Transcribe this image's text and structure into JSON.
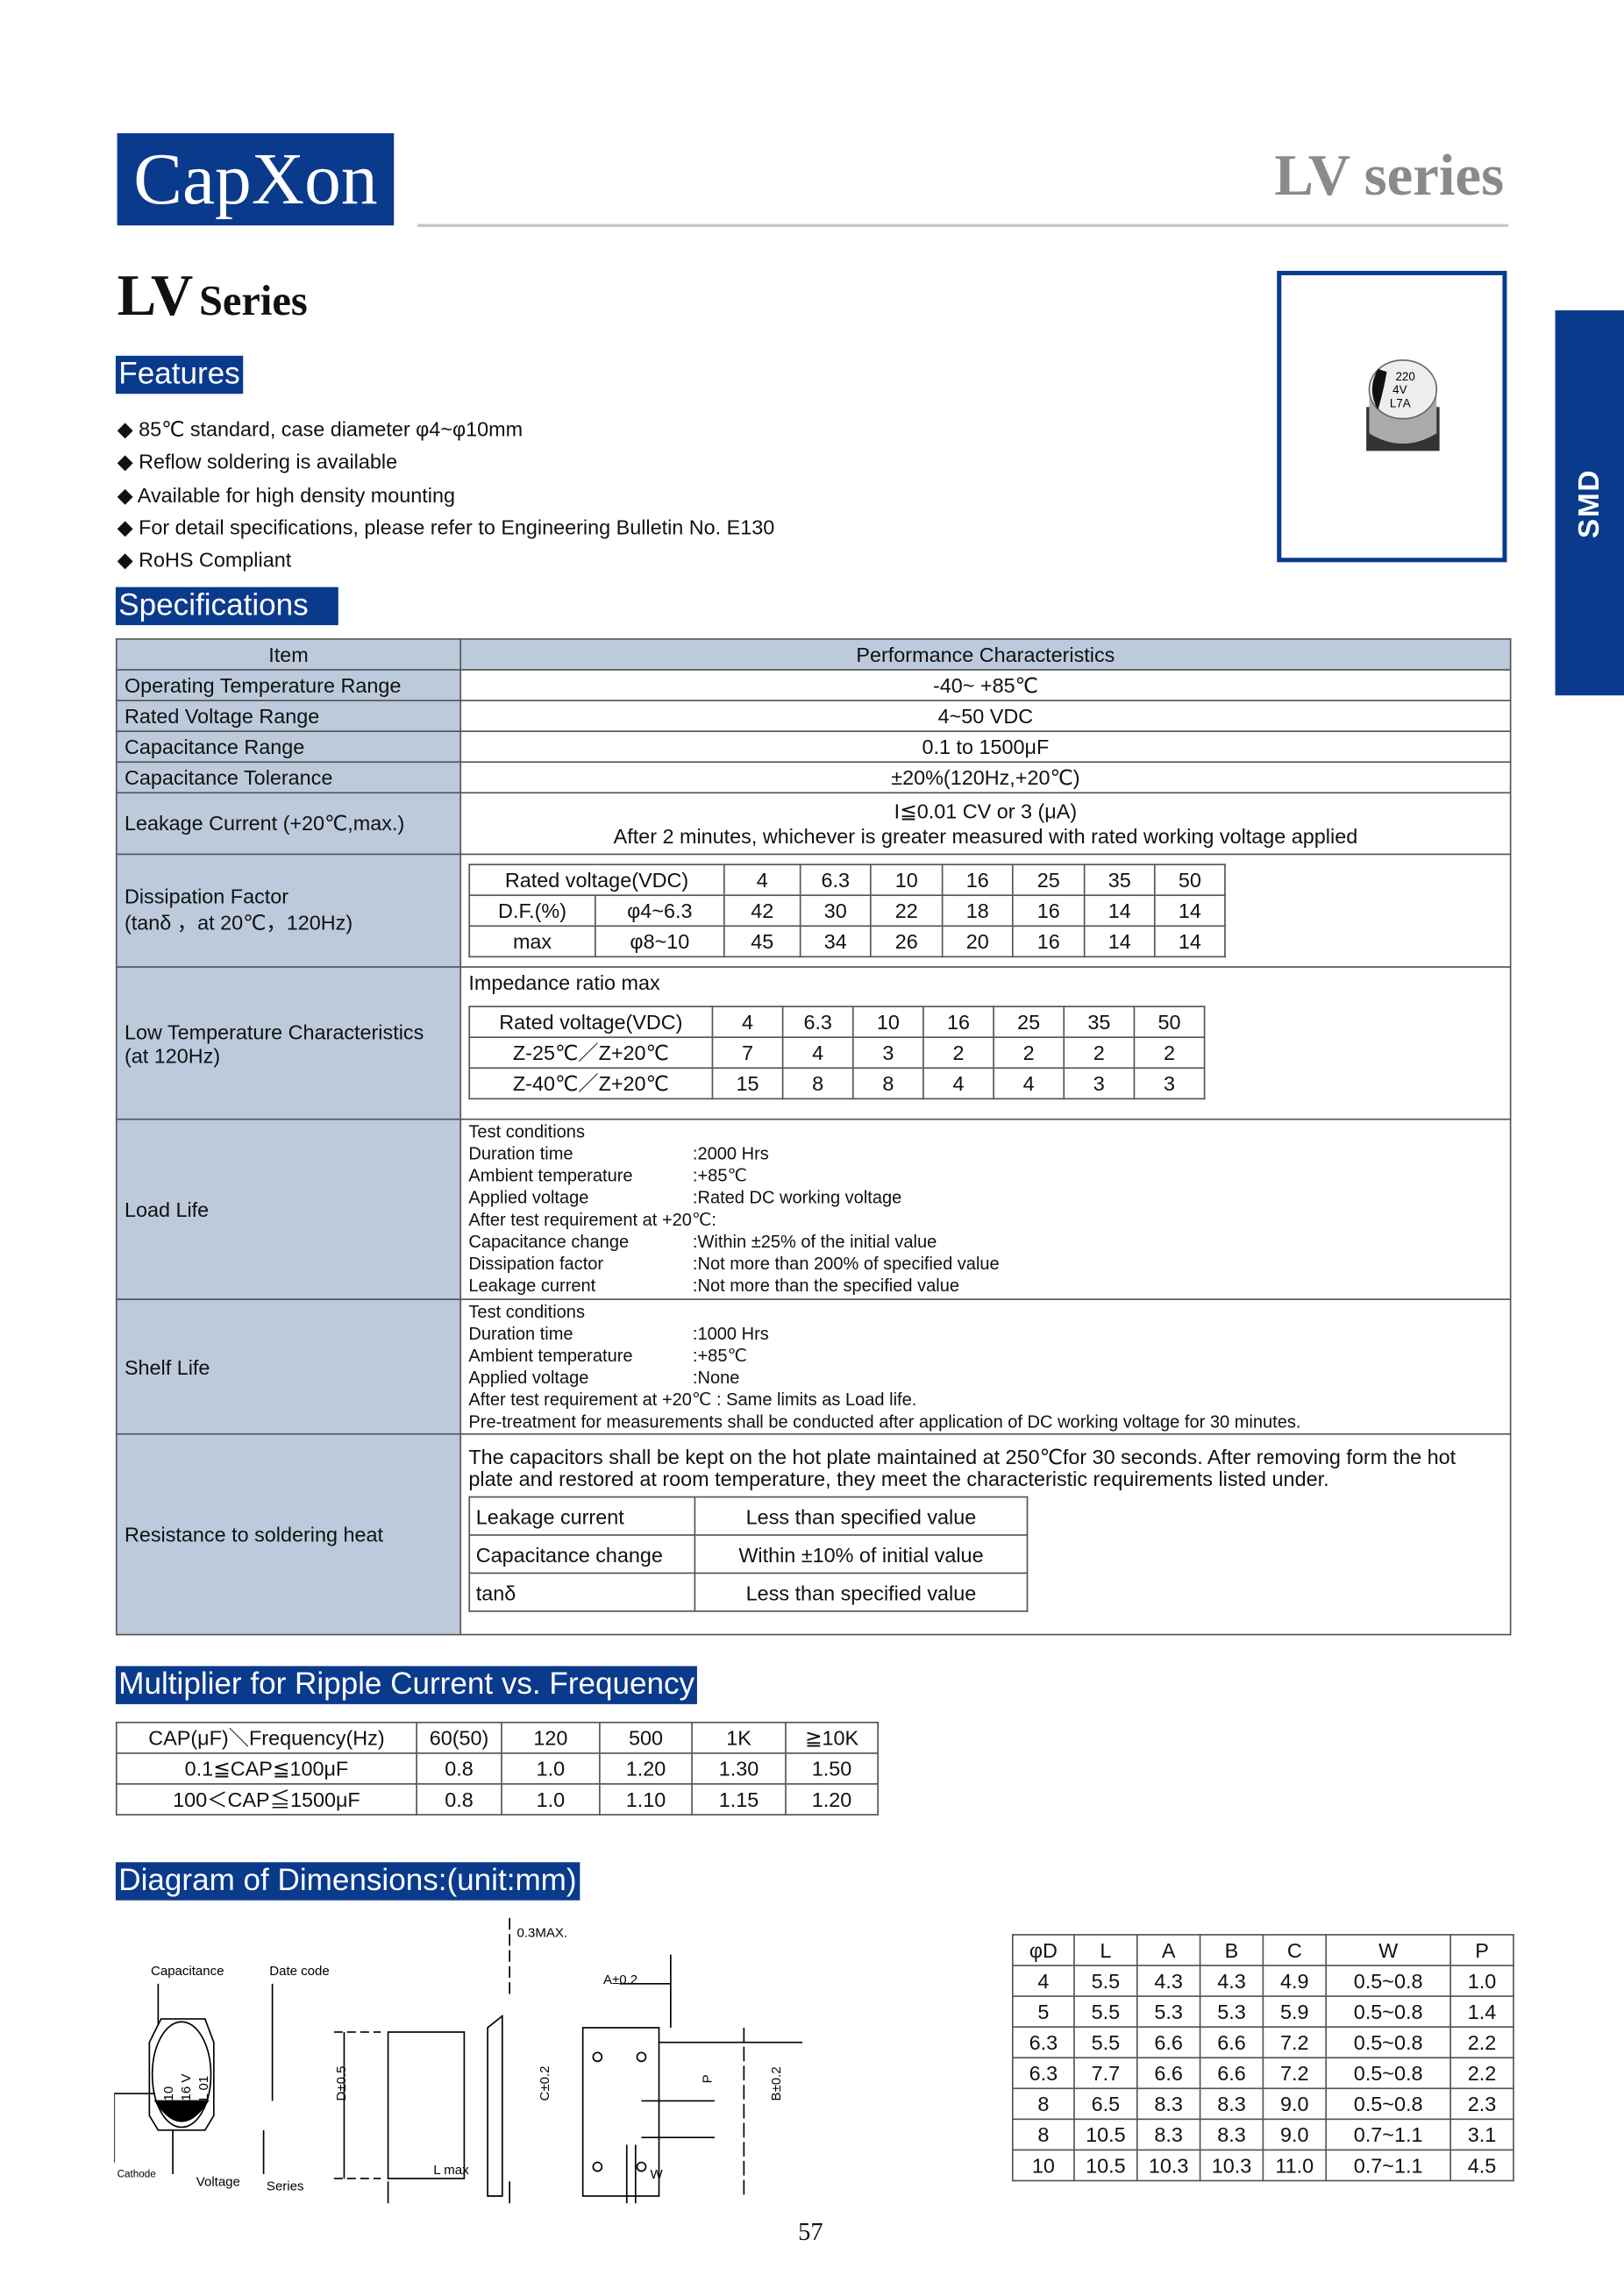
{
  "header": {
    "brand": "CapXon",
    "series_tag": "LV series",
    "title_main": "LV",
    "title_sub": "Series",
    "side_tab": "SMD"
  },
  "photo": {
    "marking": [
      "220",
      "4V",
      "L7A"
    ]
  },
  "features": {
    "heading": "Features",
    "items": [
      "85℃ standard, case diameter φ4~φ10mm",
      "Reflow soldering is available",
      "Available for high density mounting",
      "For detail specifications, please refer to Engineering Bulletin No. E130",
      "RoHS Compliant"
    ]
  },
  "specs": {
    "heading": "Specifications",
    "col_item": "Item",
    "col_perf": "Performance Characteristics",
    "rows": [
      {
        "item": "Operating Temperature Range",
        "value": "-40~ +85℃"
      },
      {
        "item": "Rated Voltage Range",
        "value": "4~50 VDC"
      },
      {
        "item": "Capacitance Range",
        "value": "0.1 to 1500μF"
      },
      {
        "item": "Capacitance Tolerance",
        "value": "±20%(120Hz,+20℃)"
      }
    ],
    "leakage": {
      "item": "Leakage Current (+20℃,max.)",
      "line1": "I≦0.01 CV or 3 (μA)",
      "line2": "After 2 minutes, whichever is greater measured with rated working voltage applied"
    },
    "df": {
      "item1": "Dissipation Factor",
      "item2": "(tanδ ，at 20℃，120Hz)",
      "header": "Rated voltage(VDC)",
      "voltages": [
        "4",
        "6.3",
        "10",
        "16",
        "25",
        "35",
        "50"
      ],
      "label_df": "D.F.(%)",
      "label_max": "max",
      "size1": "φ4~6.3",
      "size2": "φ8~10",
      "row1": [
        "42",
        "30",
        "22",
        "18",
        "16",
        "14",
        "14"
      ],
      "row2": [
        "45",
        "34",
        "26",
        "20",
        "16",
        "14",
        "14"
      ]
    },
    "lowtemp": {
      "item1": "Low Temperature Characteristics",
      "item2": "(at 120Hz)",
      "caption": "Impedance ratio max",
      "header": "Rated voltage(VDC)",
      "voltages": [
        "4",
        "6.3",
        "10",
        "16",
        "25",
        "35",
        "50"
      ],
      "label1": "Z-25℃／Z+20℃",
      "label2": "Z-40℃／Z+20℃",
      "row1": [
        "7",
        "4",
        "3",
        "2",
        "2",
        "2",
        "2"
      ],
      "row2": [
        "15",
        "8",
        "8",
        "4",
        "4",
        "3",
        "3"
      ]
    },
    "loadlife": {
      "item": "Load Life",
      "lines": [
        [
          "Test conditions",
          ""
        ],
        [
          "Duration time",
          ":2000 Hrs"
        ],
        [
          "Ambient temperature",
          ":+85℃"
        ],
        [
          "Applied voltage",
          ":Rated DC working voltage"
        ],
        [
          "After test requirement at +20℃:",
          ""
        ],
        [
          "Capacitance change",
          ":Within ±25% of the initial value"
        ],
        [
          "Dissipation factor",
          ":Not more than 200% of specified value"
        ],
        [
          "Leakage current",
          ":Not more than the specified value"
        ]
      ]
    },
    "shelflife": {
      "item": "Shelf Life",
      "lines": [
        [
          "Test conditions",
          ""
        ],
        [
          "Duration time",
          ":1000 Hrs"
        ],
        [
          "Ambient temperature",
          ":+85℃"
        ],
        [
          "Applied voltage",
          ":None"
        ],
        [
          "After test requirement at +20℃ : Same limits as Load life.",
          ""
        ],
        [
          "Pre-treatment for measurements shall be conducted after application of DC working voltage for 30 minutes.",
          ""
        ]
      ]
    },
    "solder": {
      "item": "Resistance to soldering heat",
      "text": "The capacitors shall be kept on the hot plate maintained at 250℃for 30 seconds. After removing form the hot plate and restored at room temperature, they meet the characteristic requirements listed under.",
      "rows": [
        [
          "Leakage current",
          "Less than  specified value"
        ],
        [
          "Capacitance change",
          "Within ±10% of initial value"
        ],
        [
          "tanδ",
          "Less than  specified value"
        ]
      ]
    }
  },
  "ripple": {
    "heading": "Multiplier for Ripple Current vs. Frequency",
    "header": [
      "CAP(μF)＼Frequency(Hz)",
      "60(50)",
      "120",
      "500",
      "1K",
      "≧10K"
    ],
    "rows": [
      [
        "0.1≦CAP≦100μF",
        "0.8",
        "1.0",
        "1.20",
        "1.30",
        "1.50"
      ],
      [
        "100＜CAP≦1500μF",
        "0.8",
        "1.0",
        "1.10",
        "1.15",
        "1.20"
      ]
    ]
  },
  "dimensions": {
    "heading": "Diagram of Dimensions:(unit:mm)",
    "diagram_labels": {
      "capacitance": "Capacitance",
      "date_code": "Date code",
      "cathode": "Cathode",
      "voltage": "Voltage",
      "series": "Series",
      "max03": "0.3MAX.",
      "a": "A±0.2",
      "d": "D±0.5",
      "c": "C±0.2",
      "b": "B±0.2",
      "p": "P",
      "lmax": "L max",
      "w": "W",
      "mark1": "10",
      "mark2": "16 V",
      "mark3": "L 01"
    },
    "header": [
      "φD",
      "L",
      "A",
      "B",
      "C",
      "W",
      "P"
    ],
    "rows": [
      [
        "4",
        "5.5",
        "4.3",
        "4.3",
        "4.9",
        "0.5~0.8",
        "1.0"
      ],
      [
        "5",
        "5.5",
        "5.3",
        "5.3",
        "5.9",
        "0.5~0.8",
        "1.4"
      ],
      [
        "6.3",
        "5.5",
        "6.6",
        "6.6",
        "7.2",
        "0.5~0.8",
        "2.2"
      ],
      [
        "6.3",
        "7.7",
        "6.6",
        "6.6",
        "7.2",
        "0.5~0.8",
        "2.2"
      ],
      [
        "8",
        "6.5",
        "8.3",
        "8.3",
        "9.0",
        "0.5~0.8",
        "2.3"
      ],
      [
        "8",
        "10.5",
        "8.3",
        "8.3",
        "9.0",
        "0.7~1.1",
        "3.1"
      ],
      [
        "10",
        "10.5",
        "10.3",
        "10.3",
        "11.0",
        "0.7~1.1",
        "4.5"
      ]
    ]
  },
  "page_number": "57",
  "colors": {
    "brand_blue": "#0a3a8c",
    "table_header": "#bccadc",
    "series_grey": "#8a8a8a"
  }
}
